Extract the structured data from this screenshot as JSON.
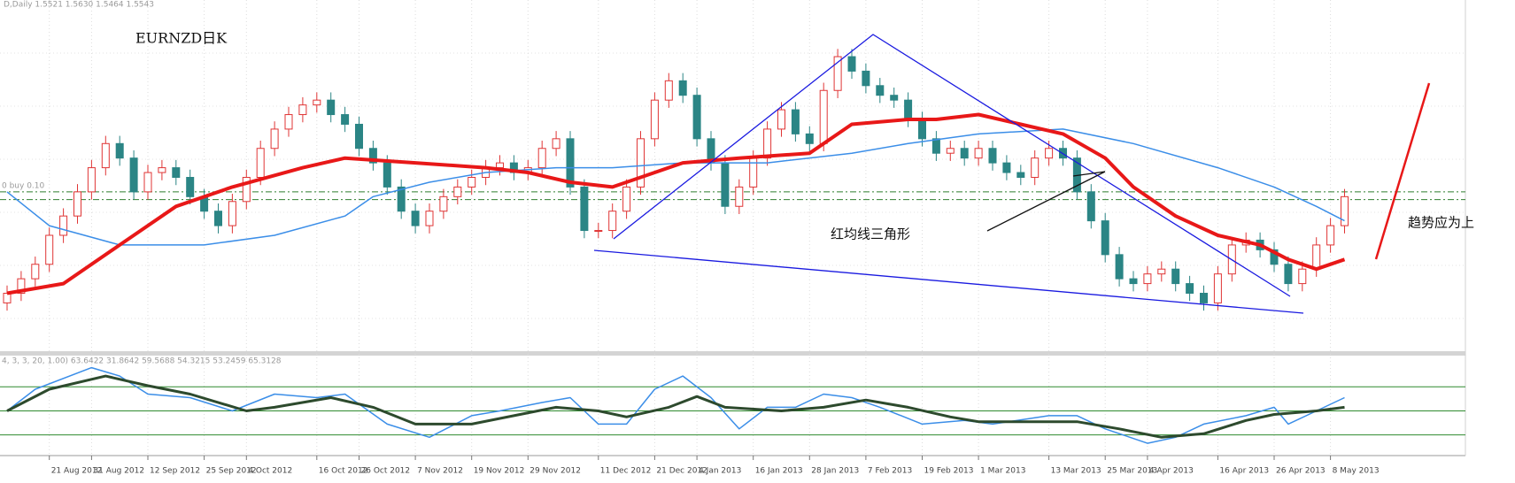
{
  "header": "D,Daily  1.5521 1.5630 1.5464 1.5543",
  "chart_data": [
    {
      "type": "candlestick",
      "title": "EURNZD日K",
      "annotations": [
        "红均线三角形",
        "趋势应为上"
      ],
      "categories": [
        null,
        null,
        null,
        "21 Aug 2012",
        null,
        null,
        "31 Aug 2012",
        null,
        null,
        null,
        "12 Sep 2012",
        null,
        null,
        null,
        "25 Sep 2012",
        null,
        null,
        "4 Oct 2012",
        null,
        null,
        null,
        null,
        "16 Oct 2012",
        null,
        null,
        "26 Oct 2012",
        null,
        null,
        null,
        "7 Nov 2012",
        null,
        null,
        null,
        "19 Nov 2012",
        null,
        null,
        null,
        "29 Nov 2012",
        null,
        null,
        null,
        null,
        "11 Dec 2012",
        null,
        null,
        null,
        "21 Dec 2012",
        null,
        null,
        "4 Jan 2013",
        null,
        null,
        null,
        "16 Jan 2013",
        null,
        null,
        null,
        "28 Jan 2013",
        null,
        null,
        null,
        "7 Feb 2013",
        null,
        null,
        null,
        "19 Feb 2013",
        null,
        null,
        null,
        "1 Mar 2013",
        null,
        null,
        null,
        null,
        "13 Mar 2013",
        null,
        null,
        null,
        "25 Mar 2013",
        null,
        null,
        "4 Apr 2013",
        null,
        null,
        null,
        null,
        "16 Apr 2013",
        null,
        null,
        null,
        "26 Apr 2013",
        null,
        null,
        null,
        "8 May 2013",
        null
      ],
      "open": [
        1.525,
        1.53,
        1.5375,
        1.545,
        1.56,
        1.57,
        1.5825,
        1.595,
        1.6075,
        1.6,
        1.5825,
        1.5925,
        1.595,
        1.59,
        1.58,
        1.5725,
        1.565,
        1.5775,
        1.59,
        1.605,
        1.615,
        1.6225,
        1.6275,
        1.63,
        1.6225,
        1.6175,
        1.605,
        1.5975,
        1.585,
        1.5725,
        1.565,
        1.5725,
        1.58,
        1.585,
        1.59,
        1.595,
        1.5975,
        1.5925,
        1.595,
        1.605,
        1.61,
        1.585,
        1.5625,
        1.5625,
        1.5725,
        1.585,
        1.61,
        1.63,
        1.64,
        1.6325,
        1.61,
        1.5975,
        1.575,
        1.585,
        1.6,
        1.615,
        1.625,
        1.6125,
        1.6075,
        1.635,
        1.6525,
        1.645,
        1.6375,
        1.6325,
        1.63,
        1.62,
        1.61,
        1.6025,
        1.605,
        1.6,
        1.605,
        1.5975,
        1.5925,
        1.59,
        1.6,
        1.605,
        1.6,
        1.5825,
        1.5675,
        1.55,
        1.5375,
        1.535,
        1.54,
        1.5425,
        1.535,
        1.53,
        1.525,
        1.54,
        1.555,
        1.5575,
        1.5525,
        1.545,
        1.535,
        1.5425,
        1.555,
        1.565
      ],
      "high": [
        1.534,
        1.5415,
        1.549,
        1.564,
        1.574,
        1.5865,
        1.599,
        1.6115,
        1.6115,
        1.604,
        1.5965,
        1.599,
        1.599,
        1.594,
        1.584,
        1.5765,
        1.5815,
        1.594,
        1.609,
        1.619,
        1.6265,
        1.6315,
        1.634,
        1.634,
        1.6265,
        1.6215,
        1.609,
        1.6015,
        1.589,
        1.5765,
        1.5765,
        1.584,
        1.589,
        1.594,
        1.599,
        1.6015,
        1.6015,
        1.599,
        1.609,
        1.614,
        1.614,
        1.589,
        1.5665,
        1.5765,
        1.589,
        1.614,
        1.634,
        1.644,
        1.644,
        1.6365,
        1.614,
        1.6015,
        1.589,
        1.604,
        1.619,
        1.629,
        1.629,
        1.6165,
        1.639,
        1.6565,
        1.6565,
        1.649,
        1.6415,
        1.6365,
        1.634,
        1.624,
        1.614,
        1.609,
        1.609,
        1.609,
        1.609,
        1.6015,
        1.5965,
        1.604,
        1.609,
        1.609,
        1.604,
        1.5865,
        1.5715,
        1.554,
        1.5415,
        1.544,
        1.5465,
        1.5465,
        1.539,
        1.534,
        1.544,
        1.559,
        1.5615,
        1.5615,
        1.5565,
        1.549,
        1.5465,
        1.559,
        1.569,
        1.584
      ],
      "low": [
        1.521,
        1.526,
        1.5335,
        1.541,
        1.556,
        1.566,
        1.5785,
        1.591,
        1.596,
        1.5785,
        1.5785,
        1.5885,
        1.586,
        1.576,
        1.5685,
        1.561,
        1.561,
        1.5735,
        1.586,
        1.601,
        1.611,
        1.6185,
        1.6235,
        1.6185,
        1.6135,
        1.601,
        1.5935,
        1.581,
        1.5685,
        1.561,
        1.561,
        1.5685,
        1.576,
        1.581,
        1.586,
        1.591,
        1.5885,
        1.5885,
        1.591,
        1.601,
        1.581,
        1.5585,
        1.5585,
        1.5585,
        1.5685,
        1.581,
        1.606,
        1.626,
        1.6285,
        1.606,
        1.5935,
        1.571,
        1.571,
        1.581,
        1.596,
        1.611,
        1.6085,
        1.6035,
        1.6035,
        1.631,
        1.641,
        1.6335,
        1.6285,
        1.626,
        1.616,
        1.606,
        1.5985,
        1.5985,
        1.596,
        1.596,
        1.5935,
        1.5885,
        1.586,
        1.586,
        1.596,
        1.596,
        1.5785,
        1.5635,
        1.546,
        1.5335,
        1.531,
        1.531,
        1.536,
        1.531,
        1.526,
        1.521,
        1.521,
        1.536,
        1.551,
        1.5485,
        1.541,
        1.531,
        1.531,
        1.5385,
        1.551,
        1.561
      ],
      "close": [
        1.53,
        1.5375,
        1.545,
        1.56,
        1.57,
        1.5825,
        1.595,
        1.6075,
        1.6,
        1.5825,
        1.5925,
        1.595,
        1.59,
        1.58,
        1.5725,
        1.565,
        1.5775,
        1.59,
        1.605,
        1.615,
        1.6225,
        1.6275,
        1.63,
        1.6225,
        1.6175,
        1.605,
        1.5975,
        1.585,
        1.5725,
        1.565,
        1.5725,
        1.58,
        1.585,
        1.59,
        1.595,
        1.5975,
        1.5925,
        1.595,
        1.605,
        1.61,
        1.585,
        1.5625,
        1.5625,
        1.5725,
        1.585,
        1.61,
        1.63,
        1.64,
        1.6325,
        1.61,
        1.5975,
        1.575,
        1.585,
        1.6,
        1.615,
        1.625,
        1.6125,
        1.6075,
        1.635,
        1.6525,
        1.645,
        1.6375,
        1.6325,
        1.63,
        1.62,
        1.61,
        1.6025,
        1.605,
        1.6,
        1.605,
        1.5975,
        1.5925,
        1.59,
        1.6,
        1.605,
        1.6,
        1.5825,
        1.5675,
        1.55,
        1.5375,
        1.535,
        1.54,
        1.5425,
        1.535,
        1.53,
        1.525,
        1.54,
        1.555,
        1.5575,
        1.5525,
        1.545,
        1.535,
        1.5425,
        1.555,
        1.565,
        1.58
      ],
      "up_color": "#e03535",
      "down_color": "#2b8585",
      "ylim": [
        1.5,
        1.68
      ],
      "overlays": [
        {
          "color": "#3b8ee8",
          "width": 1.5,
          "x": [
            0,
            3,
            8,
            14,
            19,
            24,
            26,
            30,
            34,
            39,
            43,
            48,
            54,
            60,
            64,
            69,
            75,
            80,
            86,
            90,
            93,
            95
          ],
          "values": [
            1.5825,
            1.565,
            1.555,
            1.555,
            1.56,
            1.57,
            1.58,
            1.5875,
            1.5925,
            1.595,
            1.595,
            1.5975,
            1.5975,
            1.6025,
            1.6075,
            1.6125,
            1.615,
            1.6075,
            1.595,
            1.585,
            1.575,
            1.5675
          ]
        },
        {
          "color": "#e81818",
          "width": 4,
          "x": [
            0,
            4,
            8,
            12,
            16,
            21,
            24,
            29,
            34,
            37,
            40,
            43,
            45,
            48,
            52,
            57,
            60,
            64,
            66,
            69,
            72,
            75,
            78,
            80,
            83,
            86,
            89,
            91,
            93,
            95
          ],
          "values": [
            1.53,
            1.535,
            1.555,
            1.575,
            1.585,
            1.595,
            1.6,
            1.5975,
            1.595,
            1.5925,
            1.5875,
            1.585,
            1.59,
            1.5975,
            1.6,
            1.6025,
            1.6175,
            1.62,
            1.62,
            1.6225,
            1.6175,
            1.6125,
            1.6,
            1.585,
            1.57,
            1.56,
            1.555,
            1.5475,
            1.5425,
            1.5475
          ]
        }
      ],
      "levels": [
        {
          "value": 1.5825,
          "label": "0 buy 0.10"
        },
        {
          "value": 1.5785
        }
      ],
      "level_color": "#2f7d2f"
    },
    {
      "type": "line",
      "label": "4, 3, 3, 20, 1.00) 63.6422 31.8642 59.5688 54.3215 53.2459 65.3128",
      "ylim": [
        15,
        96
      ],
      "levels": [
        30,
        50,
        70
      ],
      "level_color": "#2f8a2f",
      "series": [
        {
          "color": "#3b8ee8",
          "width": 1.5,
          "x": [
            0,
            2,
            6,
            8,
            10,
            13,
            16,
            19,
            22,
            24,
            27,
            30,
            33,
            35,
            38,
            40,
            42,
            44,
            46,
            48,
            50,
            52,
            54,
            56,
            58,
            60,
            62,
            65,
            68,
            70,
            74,
            76,
            78,
            81,
            83,
            85,
            88,
            90,
            91,
            93,
            95
          ],
          "values": [
            50,
            68,
            86,
            79,
            64,
            61,
            50,
            64,
            61,
            64,
            39,
            28,
            46,
            50,
            57,
            61,
            39,
            39,
            68,
            79,
            61,
            35,
            53,
            53,
            64,
            61,
            53,
            39,
            42,
            39,
            46,
            46,
            35,
            23,
            28,
            39,
            46,
            53,
            39,
            50,
            61
          ]
        },
        {
          "color": "#2d4a2d",
          "width": 3,
          "x": [
            0,
            3,
            7,
            10,
            13,
            17,
            19,
            23,
            26,
            29,
            33,
            36,
            39,
            42,
            44,
            47,
            49,
            51,
            55,
            58,
            61,
            64,
            67,
            69,
            74,
            76,
            79,
            82,
            85,
            88,
            90,
            93,
            95
          ],
          "values": [
            50,
            68,
            79,
            71,
            64,
            50,
            53,
            61,
            53,
            39,
            39,
            46,
            53,
            50,
            45,
            53,
            62,
            53,
            50,
            53,
            59,
            53,
            45,
            41,
            41,
            41,
            35,
            28,
            31,
            42,
            47,
            50,
            53
          ]
        }
      ]
    }
  ]
}
